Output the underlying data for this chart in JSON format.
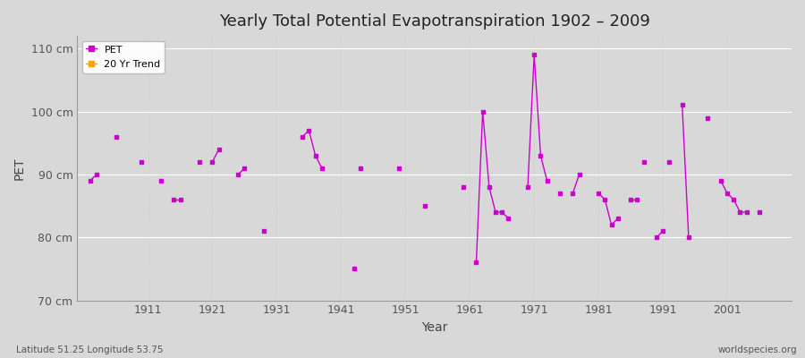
{
  "title": "Yearly Total Potential Evapotranspiration 1902 – 2009",
  "xlabel": "Year",
  "ylabel": "PET",
  "ylim": [
    70,
    112
  ],
  "xlim": [
    1900,
    2011
  ],
  "background_color": "#d8d8d8",
  "plot_bg_color": "#d8d8d8",
  "line_color": "#cc00cc",
  "trend_color": "#ffa500",
  "legend_labels": [
    "PET",
    "20 Yr Trend"
  ],
  "bottom_left_text": "Latitude 51.25 Longitude 53.75",
  "bottom_right_text": "worldspecies.org",
  "ytick_labels": [
    "70 cm",
    "80 cm",
    "90 cm",
    "100 cm",
    "110 cm"
  ],
  "ytick_values": [
    70,
    80,
    90,
    100,
    110
  ],
  "xtick_values": [
    1911,
    1921,
    1931,
    1941,
    1951,
    1961,
    1971,
    1981,
    1991,
    2001
  ],
  "segments": [
    [
      [
        1902,
        89
      ],
      [
        1903,
        90
      ]
    ],
    [
      [
        1906,
        96
      ]
    ],
    [
      [
        1910,
        92
      ]
    ],
    [
      [
        1913,
        89
      ]
    ],
    [
      [
        1915,
        86
      ],
      [
        1916,
        86
      ]
    ],
    [
      [
        1919,
        92
      ]
    ],
    [
      [
        1921,
        92
      ],
      [
        1922,
        94
      ]
    ],
    [
      [
        1925,
        90
      ],
      [
        1926,
        91
      ]
    ],
    [
      [
        1929,
        81
      ]
    ],
    [
      [
        1935,
        96
      ],
      [
        1936,
        97
      ],
      [
        1937,
        93
      ],
      [
        1938,
        91
      ]
    ],
    [
      [
        1943,
        75
      ]
    ],
    [
      [
        1944,
        91
      ]
    ],
    [
      [
        1950,
        91
      ]
    ],
    [
      [
        1954,
        85
      ]
    ],
    [
      [
        1960,
        88
      ]
    ],
    [
      [
        1962,
        76
      ],
      [
        1963,
        100
      ],
      [
        1964,
        88
      ],
      [
        1965,
        84
      ],
      [
        1966,
        84
      ],
      [
        1967,
        83
      ]
    ],
    [
      [
        1970,
        88
      ],
      [
        1971,
        109
      ],
      [
        1972,
        93
      ],
      [
        1973,
        89
      ]
    ],
    [
      [
        1975,
        87
      ]
    ],
    [
      [
        1977,
        87
      ],
      [
        1978,
        90
      ]
    ],
    [
      [
        1981,
        87
      ],
      [
        1982,
        86
      ],
      [
        1983,
        82
      ],
      [
        1984,
        83
      ]
    ],
    [
      [
        1986,
        86
      ],
      [
        1987,
        86
      ]
    ],
    [
      [
        1988,
        92
      ]
    ],
    [
      [
        1990,
        80
      ],
      [
        1991,
        81
      ]
    ],
    [
      [
        1992,
        92
      ]
    ],
    [
      [
        1994,
        101
      ],
      [
        1995,
        80
      ]
    ],
    [
      [
        1998,
        99
      ]
    ],
    [
      [
        2000,
        89
      ],
      [
        2001,
        87
      ],
      [
        2002,
        86
      ],
      [
        2003,
        84
      ],
      [
        2004,
        84
      ]
    ],
    [
      [
        2006,
        84
      ]
    ]
  ]
}
